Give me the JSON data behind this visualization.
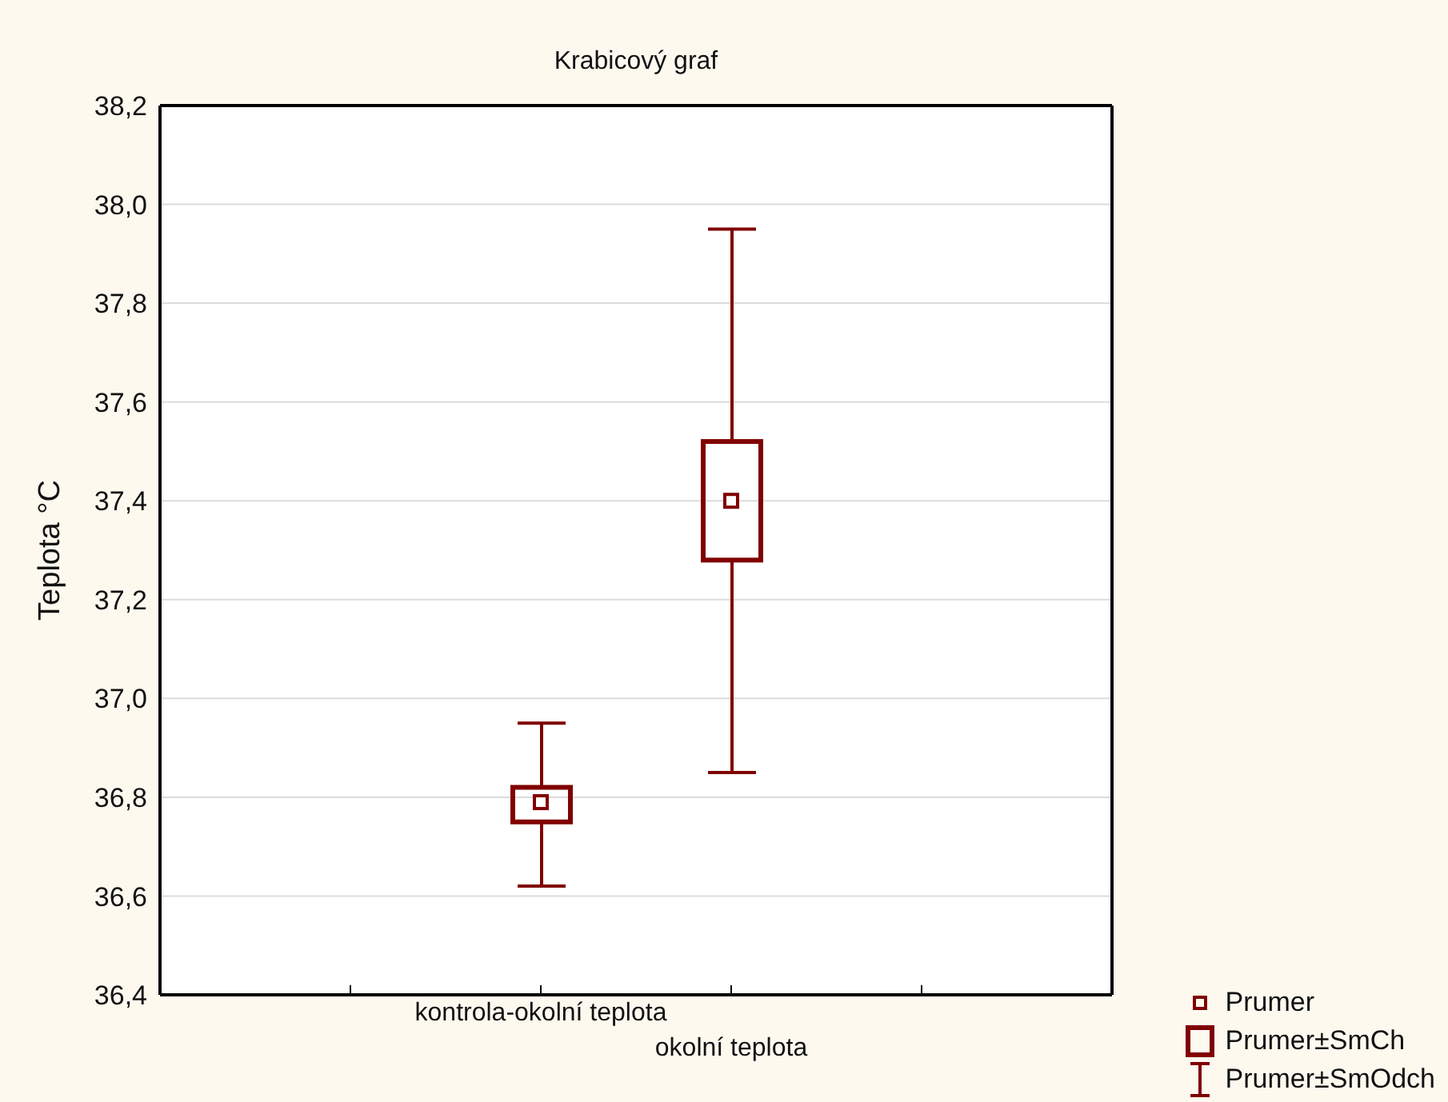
{
  "chart_data": {
    "type": "box",
    "title": "Krabicový graf",
    "ylabel": "Teplota °C",
    "categories": [
      "kontrola-okolní teplota",
      "okolní teplota"
    ],
    "color": "#800000",
    "boxes": [
      {
        "low": 36.62,
        "q1": 36.75,
        "mean": 36.79,
        "q3": 36.82,
        "high": 36.95
      },
      {
        "low": 36.85,
        "q1": 37.28,
        "mean": 37.4,
        "q3": 37.52,
        "high": 37.95
      }
    ],
    "ylim": [
      36.4,
      38.2
    ],
    "yticks": [
      {
        "value": 36.4,
        "label": "36,4"
      },
      {
        "value": 36.6,
        "label": "36,6"
      },
      {
        "value": 36.8,
        "label": "36,8"
      },
      {
        "value": 37.0,
        "label": "37,0"
      },
      {
        "value": 37.2,
        "label": "37,2"
      },
      {
        "value": 37.4,
        "label": "37,4"
      },
      {
        "value": 37.6,
        "label": "37,6"
      },
      {
        "value": 37.8,
        "label": "37,8"
      },
      {
        "value": 38.0,
        "label": "38,0"
      },
      {
        "value": 38.2,
        "label": "38,2"
      }
    ],
    "grid": "y",
    "annotations": [
      "Prumer",
      "Prumer±SmCh",
      "Prumer±SmOdch"
    ]
  }
}
